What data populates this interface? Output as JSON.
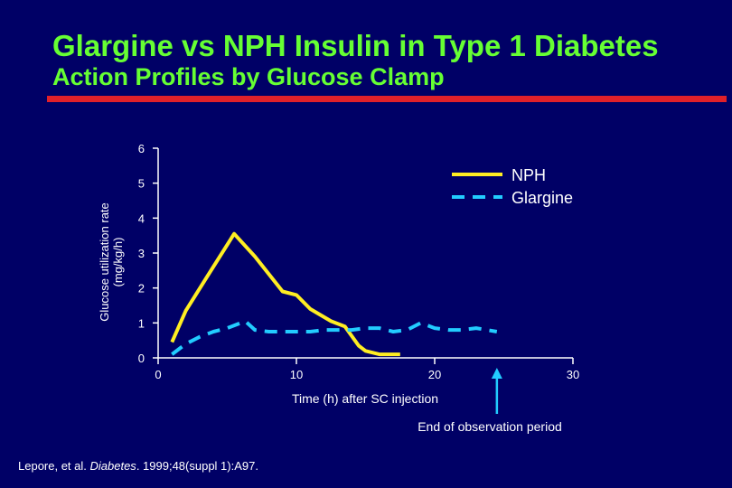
{
  "slide": {
    "title": "Glargine vs NPH Insulin in Type 1 Diabetes",
    "subtitle": "Action Profiles by Glucose Clamp",
    "citation_authors": "Lepore, et al. ",
    "citation_journal": "Diabetes",
    "citation_rest": ". 1999;48(suppl 1):A97."
  },
  "colors": {
    "background": "#000066",
    "title": "#66ff33",
    "rule": "#e0202a",
    "axis": "#ffffff",
    "nph": "#ffee22",
    "glargine": "#22ccff"
  },
  "chart_data": {
    "type": "line",
    "ylabel_line1": "Glucose utilization rate",
    "ylabel_line2": "(mg/kg/h)",
    "xlabel": "Time (h) after SC injection",
    "xlim": [
      0,
      30
    ],
    "ylim": [
      0,
      6
    ],
    "xticks": [
      0,
      10,
      20,
      30
    ],
    "yticks": [
      0,
      1,
      2,
      3,
      4,
      5,
      6
    ],
    "legend_position": "top-right",
    "annotation": "End of observation period",
    "annotation_x": 24.5,
    "series": [
      {
        "name": "NPH",
        "style": "solid",
        "x": [
          1,
          2,
          3.5,
          5.5,
          7,
          9,
          10,
          11,
          12.5,
          13.5,
          14.5,
          15,
          16,
          17.5
        ],
        "y": [
          0.45,
          1.35,
          2.3,
          3.55,
          2.9,
          1.9,
          1.8,
          1.4,
          1.05,
          0.9,
          0.35,
          0.2,
          0.1,
          0.1
        ]
      },
      {
        "name": "Glargine",
        "style": "dashed",
        "x": [
          1,
          2,
          3,
          4,
          5,
          6.3,
          7,
          8,
          9,
          10,
          11,
          12,
          13,
          14,
          15,
          16,
          17,
          18,
          19,
          20,
          21,
          22,
          23,
          24.5
        ],
        "y": [
          0.1,
          0.4,
          0.6,
          0.75,
          0.85,
          1.05,
          0.8,
          0.75,
          0.75,
          0.75,
          0.75,
          0.8,
          0.8,
          0.8,
          0.85,
          0.85,
          0.75,
          0.8,
          1.0,
          0.85,
          0.8,
          0.8,
          0.85,
          0.75
        ]
      }
    ]
  }
}
